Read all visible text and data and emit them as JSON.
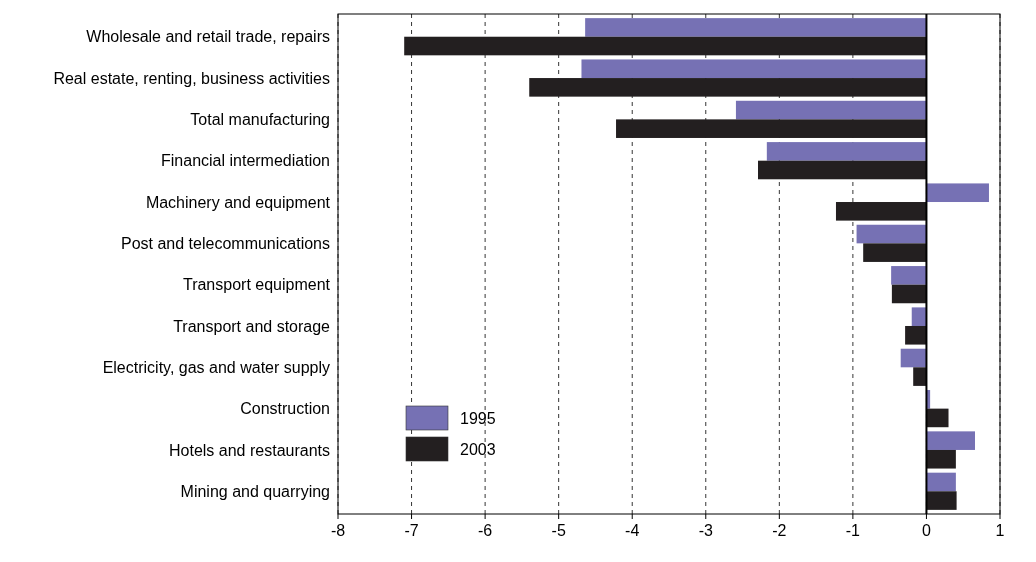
{
  "chart_data": {
    "type": "bar",
    "orientation": "horizontal",
    "categories": [
      "Wholesale and retail trade, repairs",
      "Real estate, renting, business activities",
      "Total manufacturing",
      "Financial intermediation",
      "Machinery and equipment",
      "Post and telecommunications",
      "Transport equipment",
      "Transport and storage",
      "Electricity, gas and water supply",
      "Construction",
      "Hotels and restaurants",
      "Mining and quarrying"
    ],
    "series": [
      {
        "name": "1995",
        "color": "#7671b4",
        "values": [
          -4.64,
          -4.69,
          -2.59,
          -2.17,
          0.85,
          -0.95,
          -0.48,
          -0.2,
          -0.35,
          0.05,
          0.66,
          0.4
        ]
      },
      {
        "name": "2003",
        "color": "#231f20",
        "values": [
          -7.1,
          -5.4,
          -4.22,
          -2.29,
          -1.23,
          -0.86,
          -0.47,
          -0.29,
          -0.18,
          0.3,
          0.4,
          0.41
        ]
      }
    ],
    "xlim": [
      -8,
      1
    ],
    "xticks": [
      -8,
      -7,
      -6,
      -5,
      -4,
      -3,
      -2,
      -1,
      0,
      1
    ],
    "grid": "x",
    "legend": "bottom left",
    "ref_lines": [
      {
        "axis": "x",
        "value": 0,
        "color": "#000000",
        "line_style": "solid"
      }
    ]
  }
}
